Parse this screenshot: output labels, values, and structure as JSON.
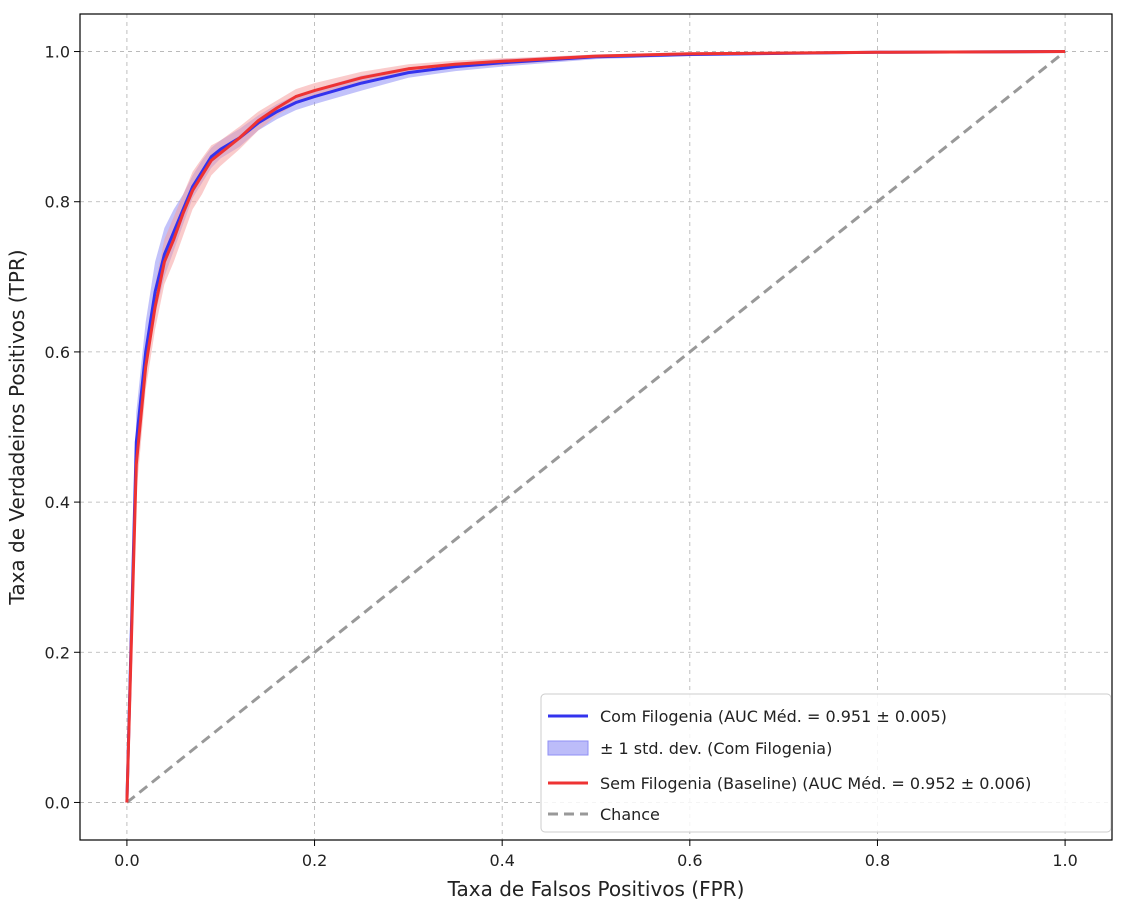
{
  "chart_data": {
    "type": "line",
    "title": "",
    "xlabel": "Taxa de Falsos Positivos (FPR)",
    "ylabel": "Taxa de Verdadeiros Positivos (TPR)",
    "xlim": [
      -0.05,
      1.05
    ],
    "ylim": [
      -0.05,
      1.05
    ],
    "xticks": [
      "0.0",
      "0.2",
      "0.4",
      "0.6",
      "0.8",
      "1.0"
    ],
    "yticks": [
      "0.0",
      "0.2",
      "0.4",
      "0.6",
      "0.8",
      "1.0"
    ],
    "grid": true,
    "legend_position": "bottom-right",
    "series": [
      {
        "name": "Com Filogenia (AUC Méd. = 0.951 ± 0.005)",
        "color": "#3333ee",
        "band_name": "± 1 std. dev. (Com Filogenia)",
        "band_color": "#8f8ff5",
        "x": [
          0,
          0.01,
          0.02,
          0.03,
          0.04,
          0.05,
          0.06,
          0.07,
          0.08,
          0.09,
          0.1,
          0.12,
          0.14,
          0.16,
          0.18,
          0.2,
          0.25,
          0.3,
          0.35,
          0.4,
          0.5,
          0.6,
          0.8,
          1.0
        ],
        "y": [
          0,
          0.48,
          0.6,
          0.68,
          0.73,
          0.76,
          0.79,
          0.82,
          0.84,
          0.86,
          0.87,
          0.885,
          0.905,
          0.92,
          0.932,
          0.94,
          0.958,
          0.972,
          0.98,
          0.985,
          0.993,
          0.996,
          0.999,
          1.0
        ],
        "y_lower": [
          0,
          0.44,
          0.57,
          0.65,
          0.7,
          0.735,
          0.77,
          0.805,
          0.825,
          0.845,
          0.858,
          0.873,
          0.895,
          0.91,
          0.922,
          0.93,
          0.948,
          0.965,
          0.974,
          0.98,
          0.99,
          0.994,
          0.998,
          1.0
        ],
        "y_upper": [
          0,
          0.52,
          0.64,
          0.72,
          0.765,
          0.79,
          0.81,
          0.835,
          0.855,
          0.872,
          0.882,
          0.897,
          0.915,
          0.93,
          0.942,
          0.95,
          0.968,
          0.979,
          0.985,
          0.99,
          0.996,
          0.998,
          1.0,
          1.0
        ]
      },
      {
        "name": "Sem Filogenia (Baseline) (AUC Méd. = 0.952 ± 0.006)",
        "color": "#ee3333",
        "band_color": "#f5a0a0",
        "x": [
          0,
          0.01,
          0.02,
          0.03,
          0.04,
          0.05,
          0.06,
          0.07,
          0.08,
          0.09,
          0.1,
          0.12,
          0.14,
          0.16,
          0.18,
          0.2,
          0.25,
          0.3,
          0.35,
          0.4,
          0.5,
          0.6,
          0.8,
          1.0
        ],
        "y": [
          0,
          0.45,
          0.58,
          0.66,
          0.72,
          0.75,
          0.785,
          0.815,
          0.835,
          0.855,
          0.865,
          0.885,
          0.908,
          0.925,
          0.94,
          0.948,
          0.965,
          0.977,
          0.983,
          0.987,
          0.994,
          0.997,
          0.999,
          1.0
        ],
        "y_lower": [
          0,
          0.41,
          0.55,
          0.63,
          0.69,
          0.72,
          0.755,
          0.79,
          0.81,
          0.835,
          0.848,
          0.87,
          0.895,
          0.915,
          0.93,
          0.938,
          0.957,
          0.97,
          0.978,
          0.982,
          0.991,
          0.995,
          0.998,
          1.0
        ],
        "y_upper": [
          0,
          0.49,
          0.61,
          0.69,
          0.75,
          0.78,
          0.81,
          0.84,
          0.858,
          0.875,
          0.882,
          0.9,
          0.92,
          0.935,
          0.95,
          0.958,
          0.973,
          0.983,
          0.988,
          0.991,
          0.996,
          0.999,
          1.0,
          1.0
        ]
      },
      {
        "name": "Chance",
        "color": "#999999",
        "dashed": true,
        "x": [
          0,
          1
        ],
        "y": [
          0,
          1
        ]
      }
    ]
  }
}
